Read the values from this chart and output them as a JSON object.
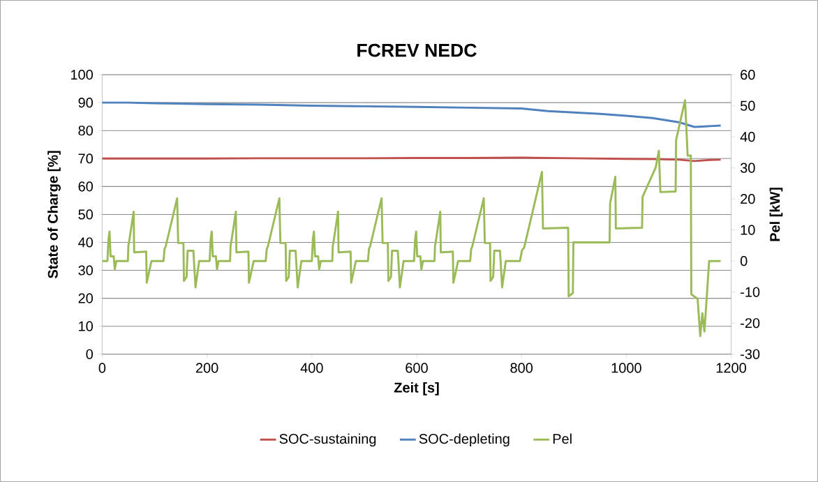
{
  "chart_data": {
    "type": "line",
    "title": "FCREV NEDC",
    "xlabel": "Zeit [s]",
    "ylabel": "State of Charge [%]",
    "y2label": "Pel [kW]",
    "xlim": [
      0,
      1200
    ],
    "xticks": [
      0,
      200,
      400,
      600,
      800,
      1000,
      1200
    ],
    "ylim": [
      0,
      100
    ],
    "yticks": [
      0,
      10,
      20,
      30,
      40,
      50,
      60,
      70,
      80,
      90,
      100
    ],
    "y2lim": [
      -30,
      60
    ],
    "y2ticks": [
      -30,
      -20,
      -10,
      0,
      10,
      20,
      30,
      40,
      50,
      60
    ],
    "grid": "y",
    "legend": "bottom",
    "marker": "none",
    "line_style": "solid",
    "series": [
      {
        "name": "SOC-sustaining",
        "color": "#c0504d",
        "x": [
          0,
          100,
          200,
          300,
          400,
          500,
          600,
          700,
          800,
          900,
          1000,
          1050,
          1100,
          1130,
          1160,
          1180
        ],
        "values": [
          70,
          70,
          70,
          70.1,
          70.1,
          70.1,
          70.2,
          70.2,
          70.3,
          70.1,
          69.9,
          69.8,
          69.6,
          69.1,
          69.5,
          69.6
        ]
      },
      {
        "name": "SOC-depleting",
        "color": "#4f81bd",
        "x": [
          0,
          50,
          100,
          200,
          300,
          400,
          500,
          600,
          700,
          800,
          850,
          900,
          950,
          1000,
          1050,
          1100,
          1130,
          1150,
          1180
        ],
        "values": [
          90,
          90,
          89.8,
          89.5,
          89.3,
          88.9,
          88.7,
          88.5,
          88.2,
          87.9,
          87,
          86.5,
          86,
          85.3,
          84.5,
          83,
          81.3,
          81.5,
          81.8
        ]
      },
      {
        "name": "Pel",
        "color": "#9bbb59",
        "axis": "y2",
        "x": [
          0,
          10,
          12,
          14,
          16,
          22,
          24,
          27,
          49,
          50,
          51,
          60,
          61,
          84,
          85,
          94,
          117,
          119,
          121,
          143,
          145,
          155,
          156,
          161,
          163,
          174,
          178,
          185,
          195,
          205,
          207,
          209,
          211,
          217,
          219,
          222,
          244,
          245,
          246,
          255,
          256,
          279,
          280,
          289,
          312,
          314,
          316,
          338,
          340,
          350,
          351,
          356,
          358,
          369,
          373,
          380,
          390,
          400,
          402,
          404,
          406,
          412,
          414,
          417,
          439,
          440,
          441,
          450,
          451,
          474,
          475,
          484,
          507,
          509,
          511,
          533,
          535,
          545,
          546,
          551,
          553,
          564,
          568,
          575,
          585,
          595,
          597,
          599,
          601,
          607,
          609,
          612,
          634,
          635,
          636,
          645,
          646,
          669,
          670,
          679,
          702,
          704,
          706,
          728,
          730,
          740,
          741,
          746,
          748,
          759,
          763,
          770,
          797,
          801,
          805,
          839,
          841,
          889,
          890,
          898,
          899,
          968,
          969,
          979,
          980,
          1030,
          1031,
          1056,
          1062,
          1065,
          1094,
          1095,
          1112,
          1117,
          1123,
          1124,
          1136,
          1141,
          1145,
          1149,
          1158,
          1180
        ],
        "values": [
          0,
          0,
          7,
          9.5,
          1.5,
          1.5,
          -2.7,
          0,
          0,
          5,
          5.8,
          15.9,
          2.8,
          3,
          -7,
          0,
          0,
          3.9,
          4.6,
          20.2,
          5.8,
          5.8,
          -6.4,
          -5.1,
          3.3,
          3.3,
          -8.5,
          0,
          0,
          0,
          7,
          9.5,
          1.5,
          1.5,
          -2.7,
          0,
          0,
          5,
          5.8,
          15.9,
          2.8,
          3,
          -7,
          0,
          0,
          3.9,
          4.6,
          20.2,
          5.8,
          5.8,
          -6.4,
          -5.1,
          3.3,
          3.3,
          -8.5,
          0,
          0,
          0,
          7,
          9.5,
          1.5,
          1.5,
          -2.7,
          0,
          0,
          5,
          5.8,
          15.9,
          2.8,
          3,
          -7,
          0,
          0,
          3.9,
          4.6,
          20.2,
          5.8,
          5.8,
          -6.4,
          -5.1,
          3.3,
          3.3,
          -8.5,
          0,
          0,
          0,
          7,
          9.5,
          1.5,
          1.5,
          -2.7,
          0,
          0,
          5,
          5.8,
          15.9,
          2.8,
          3,
          -7,
          0,
          0,
          3.9,
          4.6,
          20.2,
          5.8,
          5.8,
          -6.4,
          -5.1,
          3.3,
          3.3,
          -8.5,
          0,
          0,
          3.5,
          4.3,
          28.7,
          10.5,
          10.7,
          -11.4,
          -10.3,
          6,
          6,
          18.5,
          27.1,
          10.5,
          10.7,
          20.7,
          30.1,
          35.5,
          22.2,
          22.4,
          39,
          51.8,
          33.9,
          34,
          -10.7,
          -12.2,
          -24.2,
          -16.8,
          -22.7,
          0,
          0
        ]
      }
    ]
  }
}
